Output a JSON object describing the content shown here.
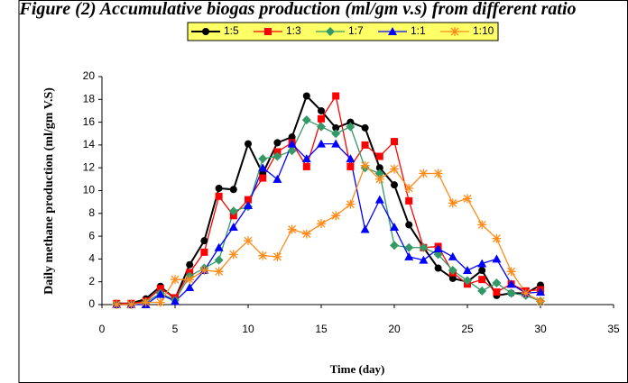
{
  "chart_data": {
    "type": "line",
    "title": "Figure (2) Accumulative biogas production (ml/gm v.s) from different ratio",
    "x_label": "Time (day)",
    "y_label": "Daily methane production (ml/gm V.S)",
    "x": [
      1,
      2,
      3,
      4,
      5,
      6,
      7,
      8,
      9,
      10,
      11,
      12,
      13,
      14,
      15,
      16,
      17,
      18,
      19,
      20,
      21,
      22,
      23,
      24,
      25,
      26,
      27,
      28,
      29,
      30
    ],
    "series": [
      {
        "name": "1:5",
        "color": "#000000",
        "marker": "circle",
        "values": [
          0.1,
          0.1,
          0.5,
          1.6,
          0.5,
          3.5,
          5.6,
          10.2,
          10.1,
          14.1,
          11.5,
          14.2,
          14.7,
          18.3,
          17,
          15.5,
          16,
          15.5,
          12,
          10.5,
          7,
          5,
          3.2,
          2.3,
          2,
          3,
          0.8,
          1,
          1,
          1.7
        ]
      },
      {
        "name": "1:3",
        "color": "#ff0000",
        "marker": "square",
        "values": [
          0.1,
          0.1,
          0.3,
          1.4,
          0.6,
          2.8,
          4.6,
          9.5,
          7.8,
          9.2,
          11.1,
          13.4,
          14.2,
          12.1,
          16.3,
          18.3,
          12.1,
          14,
          13,
          14.3,
          9.1,
          5,
          5.1,
          2.8,
          1.8,
          2.2,
          1.1,
          1.8,
          1.2,
          1.3
        ]
      },
      {
        "name": "1:7",
        "color": "#339966",
        "marker": "diamond",
        "values": [
          0,
          0,
          0.2,
          1,
          0.4,
          2.5,
          3.2,
          3.9,
          8.2,
          8.6,
          12.8,
          13,
          13.5,
          16.2,
          15.6,
          15,
          15.6,
          12,
          11.5,
          5.2,
          5,
          5,
          4.4,
          3,
          2.1,
          1.2,
          1.9,
          1,
          0.8,
          0.3
        ]
      },
      {
        "name": "1:1",
        "color": "#0000ff",
        "marker": "triangle",
        "values": [
          0,
          0,
          0,
          0.9,
          0.3,
          1.5,
          3,
          5,
          6.8,
          8.7,
          12,
          11,
          14.1,
          12.8,
          14.1,
          14.1,
          12.8,
          6.6,
          9.2,
          6.8,
          4.2,
          3.9,
          4.9,
          4.2,
          3,
          3.6,
          4,
          1.8,
          1,
          1.1
        ]
      },
      {
        "name": "1:10",
        "color": "#ff8c1a",
        "marker": "star",
        "values": [
          0,
          0,
          0.2,
          0.2,
          2.2,
          2.2,
          3,
          2.9,
          4.4,
          5.6,
          4.3,
          4.2,
          6.6,
          6.2,
          7.1,
          7.8,
          8.8,
          12.2,
          11,
          11.9,
          10.2,
          11.5,
          11.5,
          8.9,
          9.3,
          7,
          5.8,
          2.9,
          1,
          0.3
        ]
      }
    ],
    "xlim": [
      0,
      35
    ],
    "xticks": [
      0,
      5,
      10,
      15,
      20,
      25,
      30,
      35
    ],
    "ylim": [
      0,
      20
    ],
    "yticks": [
      0,
      2,
      4,
      6,
      8,
      10,
      12,
      14,
      16,
      18,
      20
    ],
    "legend_position": "top",
    "legend_color": "#ffff66"
  }
}
